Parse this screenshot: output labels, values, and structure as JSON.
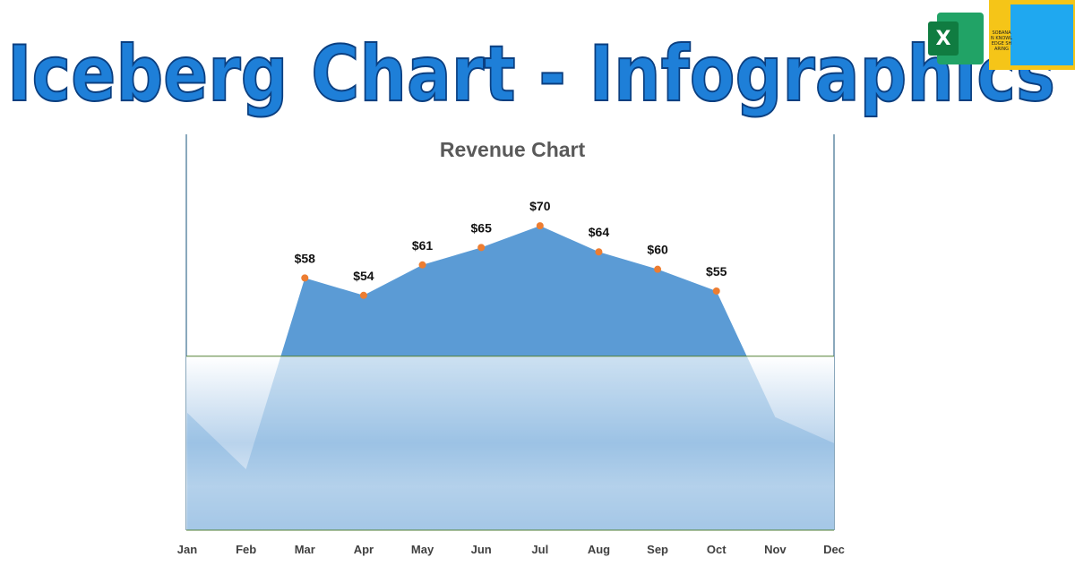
{
  "header": {
    "title": "Iceberg Chart - Infographics",
    "excel_icon": "X",
    "logo": "SOBANAN KNOWLEDGE SHARING"
  },
  "chart_data": {
    "type": "area",
    "title": "Revenue Chart",
    "categories": [
      "Jan",
      "Feb",
      "Mar",
      "Apr",
      "May",
      "Jun",
      "Jul",
      "Aug",
      "Sep",
      "Oct",
      "Nov",
      "Dec"
    ],
    "values": [
      27,
      14,
      58,
      54,
      61,
      65,
      70,
      64,
      60,
      55,
      26,
      20
    ],
    "value_labels": [
      null,
      null,
      "$58",
      "$54",
      "$61",
      "$65",
      "$70",
      "$64",
      "$60",
      "$55",
      null,
      null
    ],
    "color": "#5b9bd5",
    "marker_color": "#ed7d31",
    "waterline": 40,
    "ylim": [
      0,
      90
    ]
  }
}
